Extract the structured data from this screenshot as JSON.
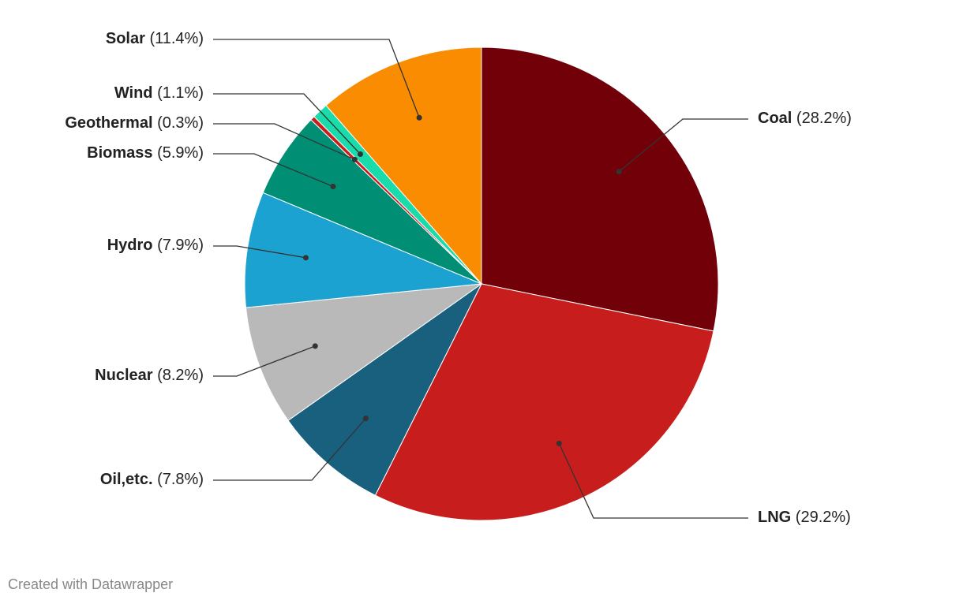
{
  "chart_data": {
    "type": "pie",
    "categories": [
      "Coal",
      "LNG",
      "Oil,etc.",
      "Nuclear",
      "Hydro",
      "Biomass",
      "Geothermal",
      "Wind",
      "Solar"
    ],
    "values": [
      28.2,
      29.2,
      7.8,
      8.2,
      7.9,
      5.9,
      0.3,
      1.1,
      11.4
    ],
    "value_labels": [
      "(28.2%)",
      "(29.2%)",
      "(7.8%)",
      "(8.2%)",
      "(7.9%)",
      "(5.9%)",
      "(0.3%)",
      "(1.1%)",
      "(11.4%)"
    ],
    "colors": [
      "#720009",
      "#c71e1d",
      "#18607d",
      "#b9b9b9",
      "#1ba2d1",
      "#008f75",
      "#c71e1d",
      "#19dcaa",
      "#f98c00"
    ],
    "credit": "Created with Datawrapper"
  }
}
